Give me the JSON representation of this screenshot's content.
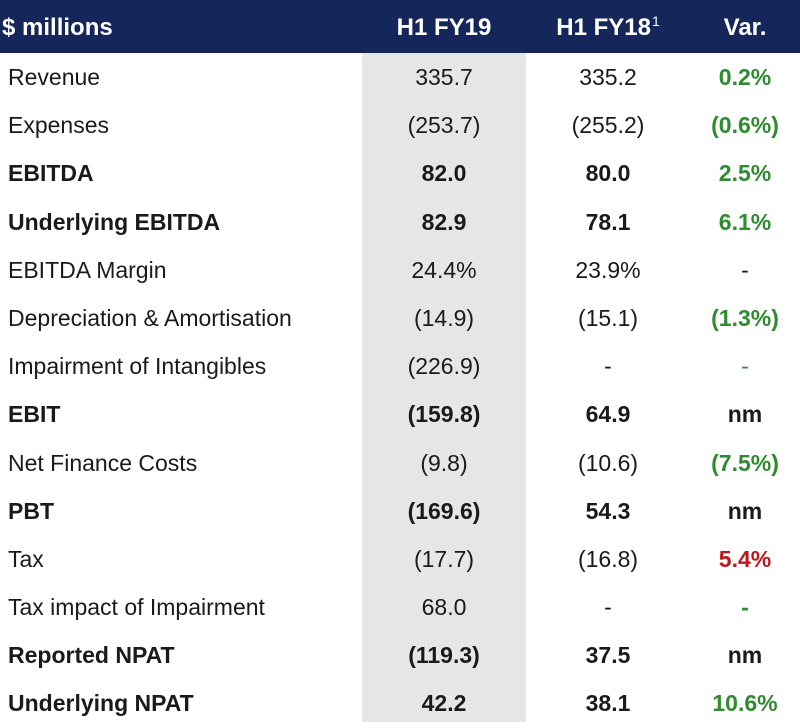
{
  "header": {
    "label": "$ millions",
    "col1": "H1 FY19",
    "col2": "H1 FY18",
    "col2_footnote": "1",
    "col3": "Var."
  },
  "rows": [
    {
      "label": "Revenue",
      "h1fy19": "335.7",
      "h1fy18": "335.2",
      "var": "0.2%",
      "var_color": "green",
      "bold": false
    },
    {
      "label": "Expenses",
      "h1fy19": "(253.7)",
      "h1fy18": "(255.2)",
      "var": "(0.6%)",
      "var_color": "green",
      "bold": false
    },
    {
      "label": "EBITDA",
      "h1fy19": "82.0",
      "h1fy18": "80.0",
      "var": "2.5%",
      "var_color": "green",
      "bold": true
    },
    {
      "label": "Underlying EBITDA",
      "h1fy19": "82.9",
      "h1fy18": "78.1",
      "var": "6.1%",
      "var_color": "green",
      "bold": true
    },
    {
      "label": "EBITDA Margin",
      "h1fy19": "24.4%",
      "h1fy18": "23.9%",
      "var": "-",
      "var_color": "dark-plain",
      "bold": false
    },
    {
      "label": "Depreciation & Amortisation",
      "h1fy19": "(14.9)",
      "h1fy18": "(15.1)",
      "var": "(1.3%)",
      "var_color": "green",
      "bold": false
    },
    {
      "label": "Impairment of Intangibles",
      "h1fy19": "(226.9)",
      "h1fy18": "-",
      "var": "-",
      "var_color": "green-plain",
      "bold": false
    },
    {
      "label": "EBIT",
      "h1fy19": "(159.8)",
      "h1fy18": "64.9",
      "var": "nm",
      "var_color": "dark",
      "bold": true
    },
    {
      "label": "Net Finance Costs",
      "h1fy19": "(9.8)",
      "h1fy18": "(10.6)",
      "var": "(7.5%)",
      "var_color": "green",
      "bold": false
    },
    {
      "label": "PBT",
      "h1fy19": "(169.6)",
      "h1fy18": "54.3",
      "var": "nm",
      "var_color": "dark",
      "bold": true
    },
    {
      "label": "Tax",
      "h1fy19": "(17.7)",
      "h1fy18": "(16.8)",
      "var": "5.4%",
      "var_color": "red",
      "bold": false
    },
    {
      "label": "Tax impact of Impairment",
      "h1fy19": "68.0",
      "h1fy18": "-",
      "var": "-",
      "var_color": "green",
      "bold": false
    },
    {
      "label": "Reported NPAT",
      "h1fy19": "(119.3)",
      "h1fy18": "37.5",
      "var": "nm",
      "var_color": "dark",
      "bold": true
    },
    {
      "label": "Underlying NPAT",
      "h1fy19": "42.2",
      "h1fy18": "38.1",
      "var": "10.6%",
      "var_color": "green",
      "bold": true
    }
  ],
  "colors": {
    "header_bg": "#15275a",
    "shade": "#e6e6e6",
    "positive": "#2e8b2e",
    "negative": "#c0151b"
  }
}
